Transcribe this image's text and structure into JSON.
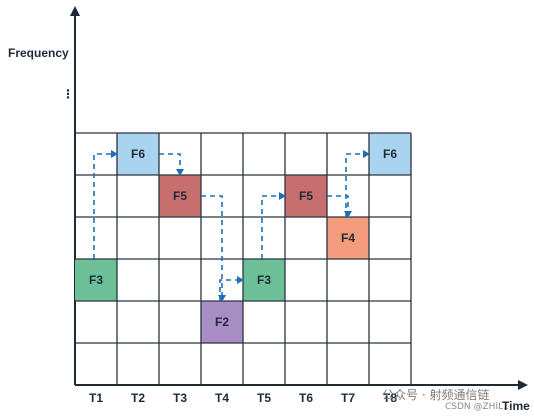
{
  "axes": {
    "y_title": "Frequency",
    "x_title": "Time",
    "y_ellipsis": "⋮"
  },
  "grid": {
    "columns": [
      "T1",
      "T2",
      "T3",
      "T4",
      "T5",
      "T6",
      "T7",
      "T8"
    ],
    "rows": 6
  },
  "colors": {
    "F1": "#f7f7f7",
    "F2": "#a98ec4",
    "F3": "#6cbf97",
    "F4": "#f39b7c",
    "F5": "#c76f6e",
    "F6": "#a9d3ef",
    "path": "#1f6fb8"
  },
  "hop_sequence": [
    {
      "time": "T1",
      "label": "F3",
      "row": 3
    },
    {
      "time": "T2",
      "label": "F6",
      "row": 0
    },
    {
      "time": "T3",
      "label": "F5",
      "row": 1
    },
    {
      "time": "T4",
      "label": "F2",
      "row": 4
    },
    {
      "time": "T5",
      "label": "F3",
      "row": 3
    },
    {
      "time": "T6",
      "label": "F5",
      "row": 1
    },
    {
      "time": "T7",
      "label": "F4",
      "row": 2
    },
    {
      "time": "T8",
      "label": "F6",
      "row": 0
    }
  ],
  "watermark": {
    "main": "公众号 · 射频通信链",
    "sub": "CSDN @ZHIL..."
  }
}
